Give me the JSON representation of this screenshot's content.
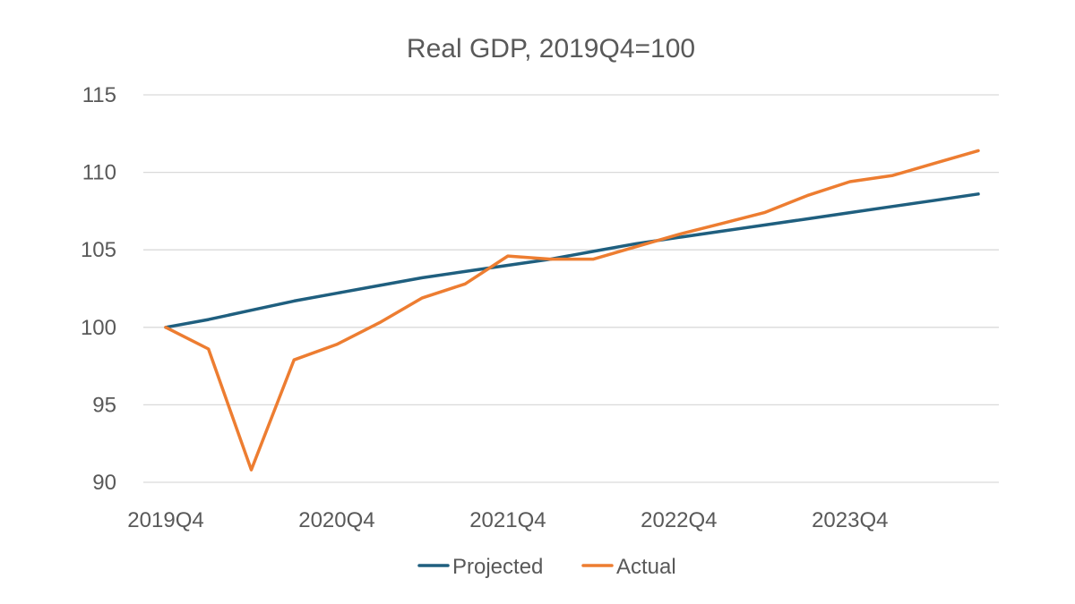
{
  "chart_data": {
    "type": "line",
    "title": "Real GDP, 2019Q4=100",
    "xlabel": "",
    "ylabel": "",
    "ylim": [
      90,
      115
    ],
    "y_ticks": [
      90,
      95,
      100,
      105,
      110,
      115
    ],
    "grid": true,
    "legend_position": "bottom",
    "x": [
      "2019Q4",
      "2020Q1",
      "2020Q2",
      "2020Q3",
      "2020Q4",
      "2021Q1",
      "2021Q2",
      "2021Q3",
      "2021Q4",
      "2022Q1",
      "2022Q2",
      "2022Q3",
      "2022Q4",
      "2023Q1",
      "2023Q2",
      "2023Q3",
      "2023Q4",
      "2024Q1",
      "2024Q2",
      "2024Q3"
    ],
    "x_tick_labels": [
      "2019Q4",
      "2020Q4",
      "2021Q4",
      "2022Q4",
      "2023Q4"
    ],
    "series": [
      {
        "name": "Projected",
        "color": "#1f5f7f",
        "values": [
          100,
          100.5,
          101.1,
          101.7,
          102.2,
          102.7,
          103.2,
          103.6,
          104.0,
          104.4,
          104.9,
          105.4,
          105.8,
          106.2,
          106.6,
          107.0,
          107.4,
          107.8,
          108.2,
          108.6
        ]
      },
      {
        "name": "Actual",
        "color": "#ed7d31",
        "values": [
          100,
          98.6,
          90.8,
          97.9,
          98.9,
          100.3,
          101.9,
          102.8,
          104.6,
          104.4,
          104.4,
          105.2,
          106.0,
          106.7,
          107.4,
          108.5,
          109.4,
          109.8,
          110.6,
          111.4
        ]
      }
    ]
  }
}
